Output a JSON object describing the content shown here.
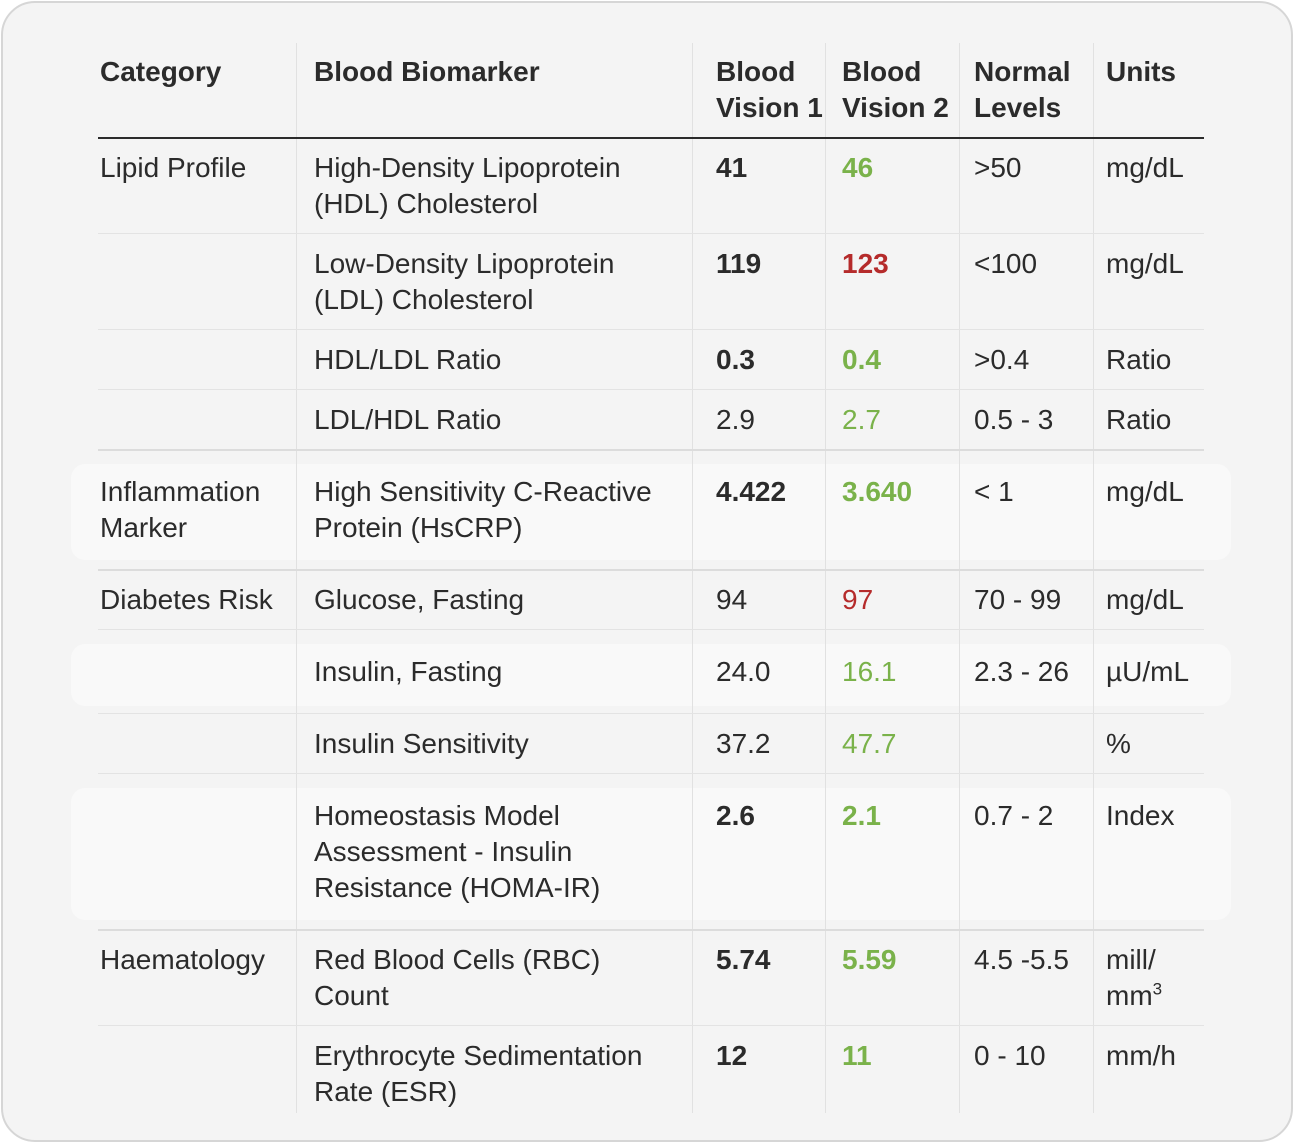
{
  "headers": {
    "category": "Category",
    "biomarker": "Blood Biomarker",
    "bv1_line1": "Blood",
    "bv1_line2": "Vision 1",
    "bv2_line1": "Blood",
    "bv2_line2": "Vision 2",
    "normal_line1": "Normal",
    "normal_line2": "Levels",
    "units": "Units"
  },
  "rows": [
    {
      "category": "Lipid Profile",
      "biomarker": [
        "High-Density Lipoprotein",
        "(HDL) Cholesterol"
      ],
      "bv1": "41",
      "bv2": "46",
      "normal": ">50",
      "units": "mg/dL"
    },
    {
      "category": "",
      "biomarker": [
        "Low-Density Lipoprotein",
        "(LDL) Cholesterol"
      ],
      "bv1": "119",
      "bv2": "123",
      "normal": "<100",
      "units": "mg/dL"
    },
    {
      "category": "",
      "biomarker": [
        "HDL/LDL Ratio"
      ],
      "bv1": "0.3",
      "bv2": "0.4",
      "normal": ">0.4",
      "units": "Ratio"
    },
    {
      "category": "",
      "biomarker": [
        "LDL/HDL Ratio"
      ],
      "bv1": "2.9",
      "bv2": "2.7",
      "normal": "0.5 - 3",
      "units": "Ratio"
    },
    {
      "category": [
        "Inflammation",
        "Marker"
      ],
      "biomarker": [
        "High Sensitivity C-Reactive",
        "Protein (HsCRP)"
      ],
      "bv1": "4.422",
      "bv2": "3.640",
      "normal": "< 1",
      "units": "mg/dL"
    },
    {
      "category": "Diabetes Risk",
      "biomarker": [
        "Glucose, Fasting"
      ],
      "bv1": "94",
      "bv2": "97",
      "normal": "70 - 99",
      "units": "mg/dL"
    },
    {
      "category": "",
      "biomarker": [
        "Insulin, Fasting"
      ],
      "bv1": "24.0",
      "bv2": "16.1",
      "normal": "2.3 - 26",
      "units": "µU/mL"
    },
    {
      "category": "",
      "biomarker": [
        "Insulin Sensitivity"
      ],
      "bv1": "37.2",
      "bv2": "47.7",
      "normal": "",
      "units": "%"
    },
    {
      "category": "",
      "biomarker": [
        "Homeostasis Model",
        "Assessment - Insulin",
        "Resistance (HOMA-IR)"
      ],
      "bv1": "2.6",
      "bv2": "2.1",
      "normal": "0.7 - 2",
      "units": "Index"
    },
    {
      "category": "Haematology",
      "biomarker": [
        "Red Blood Cells (RBC)",
        "Count"
      ],
      "bv1": "5.74",
      "bv2": "5.59",
      "normal": "4.5 -5.5",
      "units": [
        "mill/",
        "mm",
        "3"
      ]
    },
    {
      "category": "",
      "biomarker": [
        "Erythrocyte Sedimentation",
        "Rate (ESR)"
      ],
      "bv1": "12",
      "bv2": "11",
      "normal": "0 - 10",
      "units": "mm/h"
    }
  ],
  "colors": {
    "improved": "#7ab24a",
    "worsened": "#b52b2b",
    "text": "#2b2b2b"
  }
}
